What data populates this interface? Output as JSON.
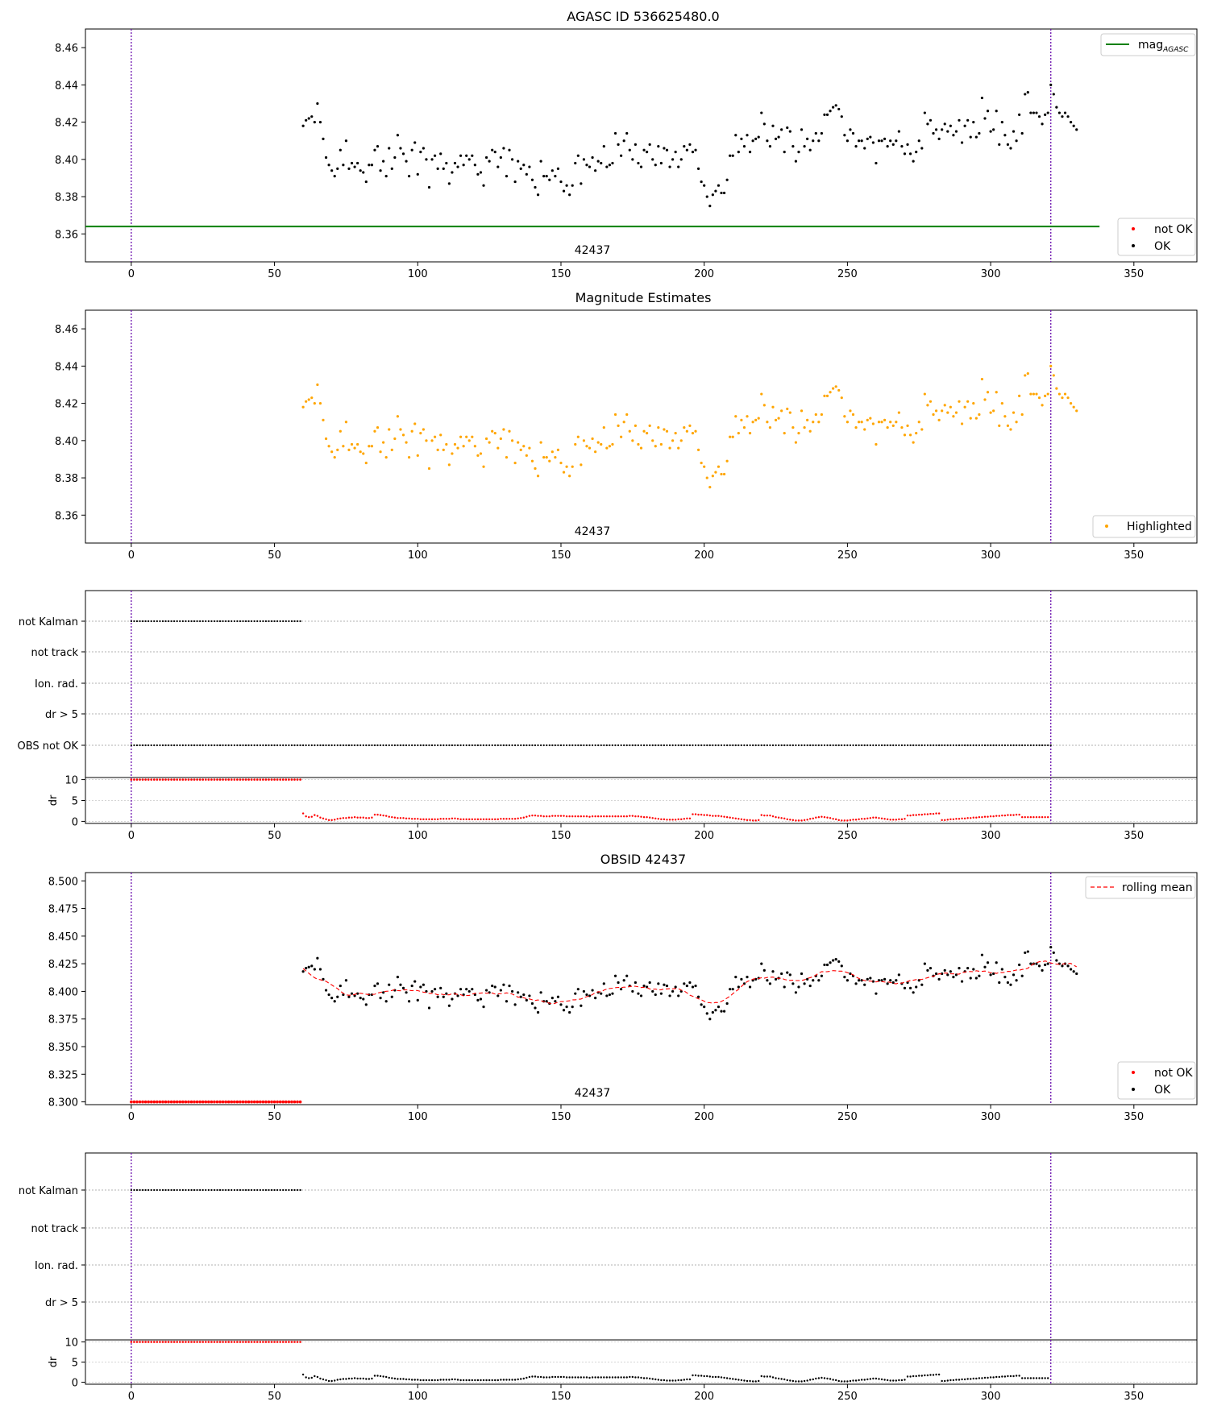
{
  "figure": {
    "panel1_title": "AGASC ID 536625480.0",
    "panel2_title": "Magnitude Estimates",
    "panel4_title": "OBSID 42437",
    "obsid_label": "42437",
    "flag_labels": [
      "not Kalman",
      "not track",
      "Ion. rad.",
      "dr > 5",
      "OBS not OK"
    ],
    "flag_labels_short": [
      "not Kalman",
      "not track",
      "Ion. rad.",
      "dr > 5"
    ],
    "dr_label": "dr",
    "legend": {
      "mag_prefix": "mag",
      "mag_sub": "AGASC",
      "not_ok": "not OK",
      "ok": "OK",
      "highlighted": "Highlighted",
      "rolling_mean": "rolling mean"
    }
  },
  "chart_data": [
    {
      "type": "scatter",
      "title": "AGASC ID 536625480.0",
      "xlim": [
        -16,
        372
      ],
      "ylim": [
        8.345,
        8.47
      ],
      "xticks": [
        0,
        50,
        100,
        150,
        200,
        250,
        300,
        350
      ],
      "yticks": [
        8.36,
        8.38,
        8.4,
        8.42,
        8.44,
        8.46
      ],
      "vlines": [
        0,
        321
      ],
      "annotation": "42437",
      "mag_agasc": 8.364,
      "legend_placement": [
        "top-right",
        "bottom-right"
      ],
      "series": [
        {
          "name": "OK",
          "color": "#000000",
          "x_start": 60,
          "x_step": 1,
          "values": [
            8.418,
            8.421,
            8.422,
            8.423,
            8.42,
            8.43,
            8.42,
            8.411,
            8.401,
            8.397,
            8.394,
            8.391,
            8.395,
            8.405,
            8.397,
            8.41,
            8.395,
            8.398,
            8.396,
            8.398,
            8.394,
            8.393,
            8.388,
            8.397,
            8.397,
            8.405,
            8.407,
            8.394,
            8.399,
            8.391,
            8.406,
            8.395,
            8.401,
            8.413,
            8.406,
            8.403,
            8.399,
            8.391,
            8.405,
            8.409,
            8.392,
            8.404,
            8.406,
            8.4,
            8.385,
            8.4,
            8.402,
            8.395,
            8.403,
            8.395,
            8.398,
            8.387,
            8.393,
            8.398,
            8.396,
            8.402,
            8.397,
            8.402,
            8.4,
            8.402,
            8.397,
            8.392,
            8.393,
            8.386,
            8.401,
            8.399,
            8.405,
            8.404,
            8.396,
            8.401,
            8.406,
            8.391,
            8.405,
            8.4,
            8.388,
            8.399,
            8.395,
            8.397,
            8.392,
            8.396,
            8.389,
            8.385,
            8.381,
            8.399,
            8.391,
            8.391,
            8.389,
            8.394,
            8.391,
            8.395,
            8.388,
            8.383,
            8.386,
            8.381,
            8.386,
            8.398,
            8.402,
            8.387,
            8.4,
            8.397,
            8.396,
            8.401,
            8.394,
            8.399,
            8.398,
            8.407,
            8.396,
            8.397,
            8.398,
            8.414,
            8.408,
            8.402,
            8.41,
            8.414,
            8.405,
            8.4,
            8.408,
            8.398,
            8.396,
            8.405,
            8.404,
            8.408,
            8.4,
            8.397,
            8.407,
            8.398,
            8.406,
            8.405,
            8.396,
            8.4,
            8.404,
            8.396,
            8.4,
            8.407,
            8.405,
            8.408,
            8.404,
            8.405,
            8.395,
            8.388,
            8.386,
            8.38,
            8.375,
            8.381,
            8.383,
            8.386,
            8.382,
            8.382,
            8.389,
            8.402,
            8.402,
            8.413,
            8.404,
            8.411,
            8.407,
            8.413,
            8.404,
            8.41,
            8.411,
            8.412,
            8.425,
            8.419,
            8.41,
            8.407,
            8.418,
            8.411,
            8.412,
            8.416,
            8.404,
            8.417,
            8.415,
            8.407,
            8.399,
            8.404,
            8.416,
            8.407,
            8.411,
            8.405,
            8.41,
            8.414,
            8.41,
            8.414,
            8.424,
            8.424,
            8.426,
            8.428,
            8.429,
            8.427,
            8.423,
            8.413,
            8.41,
            8.416,
            8.414,
            8.407,
            8.41,
            8.41,
            8.406,
            8.411,
            8.412,
            8.409,
            8.398,
            8.41,
            8.41,
            8.411,
            8.407,
            8.41,
            8.408,
            8.41,
            8.415,
            8.407,
            8.403,
            8.408,
            8.403,
            8.399,
            8.404,
            8.41,
            8.406,
            8.425,
            8.419,
            8.421,
            8.414,
            8.416,
            8.411,
            8.416,
            8.419,
            8.415,
            8.418,
            8.413,
            8.415,
            8.421,
            8.409,
            8.418,
            8.421,
            8.412,
            8.42,
            8.412,
            8.414,
            8.433,
            8.422,
            8.426,
            8.415,
            8.416,
            8.426,
            8.408,
            8.42,
            8.413,
            8.408,
            8.406,
            8.415,
            8.41,
            8.424,
            8.414,
            8.435,
            8.436,
            8.425,
            8.425,
            8.425,
            8.423,
            8.419,
            8.424,
            8.425,
            8.44,
            8.435,
            8.428,
            8.425,
            8.423,
            8.425,
            8.423,
            8.42,
            8.418,
            8.416
          ]
        },
        {
          "name": "not OK",
          "color": "#ff0000",
          "values": []
        }
      ]
    },
    {
      "type": "scatter",
      "title": "Magnitude Estimates",
      "xlim": [
        -16,
        372
      ],
      "ylim": [
        8.345,
        8.47
      ],
      "xticks": [
        0,
        50,
        100,
        150,
        200,
        250,
        300,
        350
      ],
      "yticks": [
        8.36,
        8.38,
        8.4,
        8.42,
        8.44,
        8.46
      ],
      "vlines": [
        0,
        321
      ],
      "annotation": "42437",
      "legend_placement": "bottom-right",
      "series": [
        {
          "name": "Highlighted",
          "color": "#ffa500",
          "same_values_as": "panel1.OK"
        }
      ]
    },
    {
      "type": "scatter",
      "title": "",
      "xlim": [
        -16,
        372
      ],
      "y_categories": [
        "not Kalman",
        "not track",
        "Ion. rad.",
        "dr > 5",
        "OBS not OK"
      ],
      "vlines": [
        0,
        321
      ],
      "series": [
        {
          "name": "not Kalman",
          "color": "#000000",
          "x_range": [
            0,
            59
          ]
        },
        {
          "name": "OBS not OK",
          "color": "#000000",
          "x_range": [
            0,
            321
          ]
        }
      ],
      "dr_subplot": {
        "ylabel": "dr",
        "ylim": [
          -0.5,
          10.5
        ],
        "yticks": [
          0,
          5,
          10
        ],
        "color": "#ff0000",
        "early_value": 10,
        "early_x_range": [
          0,
          59
        ],
        "later_x_start": 60,
        "values": [
          1.9,
          1.2,
          1.0,
          1.1,
          1.5,
          1.3,
          0.9,
          0.7,
          0.5,
          0.3,
          0.3,
          0.4,
          0.6,
          0.7,
          0.8,
          0.8,
          0.9,
          0.9,
          1.0,
          0.9,
          0.9,
          0.9,
          0.8,
          0.8,
          0.9,
          1.6,
          1.6,
          1.5,
          1.4,
          1.3,
          1.1,
          1.0,
          0.9,
          0.8,
          0.8,
          0.8,
          0.7,
          0.7,
          0.6,
          0.6,
          0.6,
          0.5,
          0.5,
          0.5,
          0.5,
          0.5,
          0.5,
          0.5,
          0.6,
          0.6,
          0.6,
          0.6,
          0.7,
          0.7,
          0.6,
          0.5,
          0.5,
          0.5,
          0.5,
          0.5,
          0.5,
          0.5,
          0.5,
          0.5,
          0.5,
          0.5,
          0.5,
          0.5,
          0.5,
          0.6,
          0.6,
          0.6,
          0.6,
          0.6,
          0.6,
          0.7,
          0.8,
          0.9,
          1.1,
          1.3,
          1.4,
          1.4,
          1.3,
          1.3,
          1.2,
          1.2,
          1.2,
          1.3,
          1.3,
          1.3,
          1.3,
          1.3,
          1.2,
          1.2,
          1.2,
          1.2,
          1.2,
          1.2,
          1.2,
          1.2,
          1.1,
          1.2,
          1.2,
          1.2,
          1.2,
          1.2,
          1.2,
          1.2,
          1.2,
          1.2,
          1.2,
          1.2,
          1.2,
          1.2,
          1.3,
          1.3,
          1.2,
          1.2,
          1.1,
          1.0,
          1.0,
          0.9,
          0.8,
          0.7,
          0.6,
          0.5,
          0.5,
          0.4,
          0.4,
          0.4,
          0.4,
          0.5,
          0.5,
          0.6,
          0.7,
          0.7,
          1.7,
          1.7,
          1.6,
          1.6,
          1.5,
          1.5,
          1.4,
          1.3,
          1.3,
          1.3,
          1.2,
          1.1,
          1.0,
          0.9,
          0.8,
          0.7,
          0.6,
          0.5,
          0.4,
          0.3,
          0.3,
          0.2,
          0.2,
          0.3,
          1.5,
          1.4,
          1.4,
          1.4,
          1.2,
          1.0,
          0.9,
          0.8,
          0.7,
          0.5,
          0.4,
          0.3,
          0.2,
          0.2,
          0.2,
          0.3,
          0.4,
          0.6,
          0.7,
          0.9,
          1.0,
          1.1,
          1.0,
          0.9,
          0.8,
          0.6,
          0.5,
          0.3,
          0.2,
          0.2,
          0.2,
          0.3,
          0.4,
          0.4,
          0.5,
          0.6,
          0.6,
          0.7,
          0.8,
          0.9,
          0.9,
          0.8,
          0.7,
          0.6,
          0.5,
          0.4,
          0.4,
          0.4,
          0.5,
          0.5,
          0.6,
          1.4,
          1.4,
          1.5,
          1.5,
          1.6,
          1.6,
          1.7,
          1.7,
          1.8,
          1.8,
          1.9,
          1.9,
          0.3,
          0.3,
          0.4,
          0.5,
          0.5,
          0.6,
          0.6,
          0.7,
          0.7,
          0.8,
          0.8,
          0.9,
          0.9,
          1.0,
          1.0,
          1.1,
          1.1,
          1.2,
          1.2,
          1.3,
          1.3,
          1.4,
          1.4,
          1.5,
          1.5,
          1.5,
          1.6,
          1.6,
          1.0,
          1.0,
          1.0,
          1.0,
          1.0,
          1.0,
          1.0,
          1.0,
          1.0,
          1.0
        ]
      }
    },
    {
      "type": "scatter",
      "title": "OBSID 42437",
      "xlim": [
        -16,
        372
      ],
      "ylim": [
        8.2975,
        8.5075
      ],
      "xticks": [
        0,
        50,
        100,
        150,
        200,
        250,
        300,
        350
      ],
      "yticks": [
        8.3,
        8.325,
        8.35,
        8.375,
        8.4,
        8.425,
        8.45,
        8.475,
        8.5
      ],
      "vlines": [
        0,
        321
      ],
      "annotation": "42437",
      "legend_placement": [
        "top-right",
        "bottom-right"
      ],
      "series": [
        {
          "name": "OK",
          "color": "#000000",
          "same_values_as": "panel1.OK"
        },
        {
          "name": "not OK",
          "color": "#ff0000",
          "x_range": [
            0,
            59
          ],
          "value": 8.3
        },
        {
          "name": "rolling mean",
          "color": "#ff0000",
          "style": "dashed",
          "smoothing_window": 15
        }
      ]
    },
    {
      "type": "scatter",
      "title": "",
      "xlim": [
        -16,
        372
      ],
      "y_categories": [
        "not Kalman",
        "not track",
        "Ion. rad.",
        "dr > 5"
      ],
      "vlines": [
        0,
        321
      ],
      "series": [
        {
          "name": "not Kalman",
          "color": "#000000",
          "x_range": [
            0,
            59
          ]
        }
      ],
      "dr_subplot": {
        "ylabel": "dr",
        "ylim": [
          -0.5,
          10.5
        ],
        "yticks": [
          0,
          5,
          10
        ],
        "early_color": "#ff0000",
        "later_color": "#000000",
        "same_values_as": "panel3.dr"
      }
    }
  ]
}
